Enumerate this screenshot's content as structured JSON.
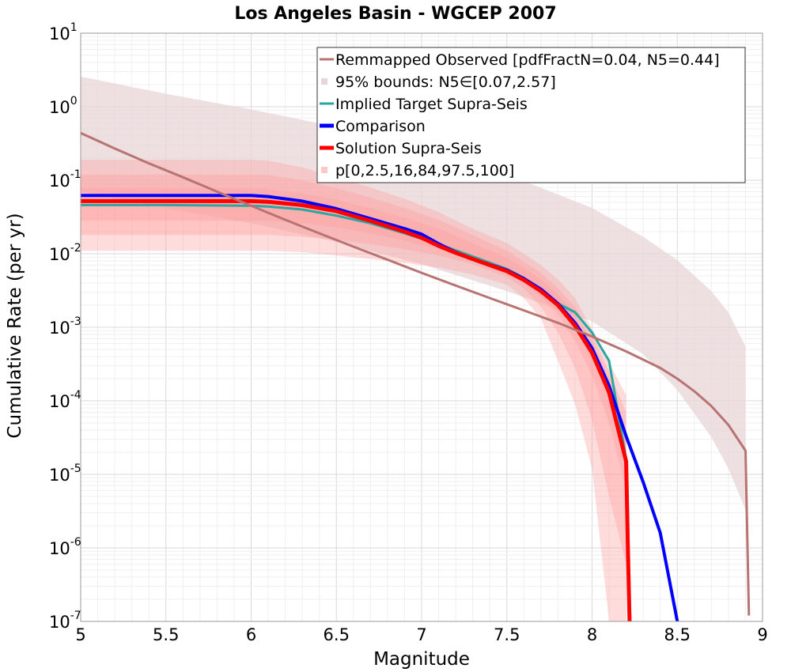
{
  "chart_data": {
    "type": "line",
    "title": "Los Angeles Basin - WGCEP 2007",
    "xlabel": "Magnitude",
    "ylabel": "Cumulative Rate (per yr)",
    "xlim": [
      5,
      9
    ],
    "ylim": [
      1e-07,
      10
    ],
    "yscale": "log",
    "grid": true,
    "legend_position": "top-right",
    "x_ticks": [
      "5",
      "5.5",
      "6",
      "6.5",
      "7",
      "7.5",
      "8",
      "8.5",
      "9"
    ],
    "y_ticks": [
      {
        "base": "10",
        "exp": "-7"
      },
      {
        "base": "10",
        "exp": "-6"
      },
      {
        "base": "10",
        "exp": "-5"
      },
      {
        "base": "10",
        "exp": "-4"
      },
      {
        "base": "10",
        "exp": "-3"
      },
      {
        "base": "10",
        "exp": "-2"
      },
      {
        "base": "10",
        "exp": "-1"
      },
      {
        "base": "10",
        "exp": "0"
      },
      {
        "base": "10",
        "exp": "1"
      }
    ],
    "colors": {
      "observed": "#b87373",
      "observed_band": "#e8d5d7",
      "implied": "#2aa7a0",
      "comparison": "#0000ff",
      "solution": "#ff0000",
      "solution_band": "#ff9a9a"
    },
    "legend": [
      {
        "label": "Remmapped Observed [pdfFractN=0.04, N5=0.44]",
        "kind": "line",
        "color": "#b87373"
      },
      {
        "label": "95% bounds: N5∈[0.07,2.57]",
        "kind": "patch",
        "color": "#e8d5d7"
      },
      {
        "label": "Implied Target Supra-Seis",
        "kind": "line",
        "color": "#2aa7a0"
      },
      {
        "label": "Comparison",
        "kind": "thick",
        "color": "#0000ff"
      },
      {
        "label": "Solution Supra-Seis",
        "kind": "thick",
        "color": "#ff0000"
      },
      {
        "label": "p[0,2.5,16,84,97.5,100]",
        "kind": "patch",
        "color": "#ffc8c8"
      }
    ],
    "series": [
      {
        "name": "Remmapped Observed [pdfFractN=0.04, N5=0.44]",
        "x": [
          5.0,
          5.2,
          5.4,
          5.6,
          5.8,
          6.0,
          6.2,
          6.4,
          6.6,
          6.8,
          7.0,
          7.2,
          7.4,
          7.6,
          7.8,
          8.0,
          8.2,
          8.4,
          8.5,
          8.6,
          8.7,
          8.8,
          8.9,
          8.92
        ],
        "y": [
          0.44,
          0.27,
          0.17,
          0.11,
          0.07,
          0.045,
          0.029,
          0.019,
          0.0125,
          0.0083,
          0.0055,
          0.0037,
          0.0025,
          0.0017,
          0.00115,
          0.00075,
          0.00047,
          0.00028,
          0.0002,
          0.000135,
          8.5e-05,
          4.7e-05,
          2.1e-05,
          1.2e-07
        ]
      },
      {
        "name": "95% bounds: N5∈[0.07,2.57]",
        "band": true,
        "x": [
          5.0,
          5.5,
          6.0,
          6.5,
          7.0,
          7.5,
          8.0,
          8.3,
          8.5,
          8.7,
          8.8,
          8.9
        ],
        "lower": [
          0.07,
          0.042,
          0.026,
          0.0145,
          0.0072,
          0.0031,
          0.0012,
          0.00043,
          0.00014,
          3.2e-05,
          1.2e-05,
          3.3e-06
        ],
        "upper": [
          2.57,
          1.5,
          0.92,
          0.53,
          0.26,
          0.12,
          0.042,
          0.017,
          0.0082,
          0.0031,
          0.0016,
          0.00055
        ]
      },
      {
        "name": "Implied Target Supra-Seis",
        "x": [
          5.0,
          5.5,
          6.0,
          6.1,
          6.3,
          6.5,
          6.7,
          6.9,
          7.1,
          7.3,
          7.5,
          7.6,
          7.7,
          7.8,
          7.9,
          8.0,
          8.1,
          8.2
        ],
        "y": [
          0.046,
          0.046,
          0.045,
          0.044,
          0.04,
          0.033,
          0.026,
          0.019,
          0.0135,
          0.0092,
          0.0062,
          0.0047,
          0.0033,
          0.0021,
          0.0016,
          0.00085,
          0.00035,
          1.6e-05
        ]
      },
      {
        "name": "Comparison",
        "x": [
          5.0,
          5.5,
          6.0,
          6.1,
          6.3,
          6.5,
          6.7,
          6.9,
          7.0,
          7.1,
          7.2,
          7.3,
          7.5,
          7.6,
          7.7,
          7.8,
          7.9,
          8.0,
          8.1,
          8.2,
          8.3,
          8.4,
          8.5
        ],
        "y": [
          0.062,
          0.062,
          0.062,
          0.06,
          0.052,
          0.041,
          0.03,
          0.022,
          0.0185,
          0.0137,
          0.0105,
          0.0085,
          0.006,
          0.0046,
          0.0033,
          0.0021,
          0.00115,
          0.00052,
          0.00016,
          3.3e-05,
          7.8e-06,
          1.6e-06,
          1e-07
        ]
      },
      {
        "name": "Solution Supra-Seis",
        "x": [
          5.0,
          5.5,
          6.0,
          6.1,
          6.3,
          6.5,
          6.7,
          6.9,
          7.0,
          7.1,
          7.2,
          7.3,
          7.5,
          7.6,
          7.7,
          7.8,
          7.9,
          8.0,
          8.1,
          8.2,
          8.21,
          8.22
        ],
        "y": [
          0.052,
          0.052,
          0.052,
          0.051,
          0.046,
          0.038,
          0.028,
          0.02,
          0.0165,
          0.0128,
          0.0103,
          0.0085,
          0.0058,
          0.0044,
          0.0031,
          0.002,
          0.00105,
          0.00045,
          0.00013,
          1.5e-05,
          1e-06,
          1e-07
        ]
      },
      {
        "name": "p[0,2.5,16,84,97.5,100]",
        "band_set": true,
        "x": [
          5.0,
          5.5,
          6.0,
          6.1,
          6.3,
          6.5,
          6.7,
          6.9,
          7.1,
          7.3,
          7.5,
          7.6,
          7.7,
          7.8,
          7.9,
          8.0,
          8.1,
          8.2
        ],
        "bands": [
          {
            "lower": [
              0.011,
              0.011,
              0.011,
              0.011,
              0.0105,
              0.0095,
              0.0085,
              0.0075,
              0.0065,
              0.0052,
              0.0038,
              0.0025,
              0.0013,
              0.00035,
              9e-05,
              1.2e-05,
              1e-07,
              1e-07
            ],
            "upper": [
              0.19,
              0.19,
              0.19,
              0.185,
              0.15,
              0.11,
              0.08,
              0.056,
              0.037,
              0.022,
              0.014,
              0.01,
              0.007,
              0.0045,
              0.0025,
              0.00095,
              0.00033,
              0.00012
            ]
          },
          {
            "lower": [
              0.018,
              0.018,
              0.018,
              0.018,
              0.017,
              0.0155,
              0.0135,
              0.0115,
              0.0095,
              0.0072,
              0.0048,
              0.0034,
              0.0019,
              0.00085,
              0.00028,
              5.5e-05,
              5e-06,
              6e-07
            ],
            "upper": [
              0.12,
              0.12,
              0.12,
              0.118,
              0.1,
              0.078,
              0.058,
              0.042,
              0.029,
              0.018,
              0.011,
              0.0078,
              0.0055,
              0.0034,
              0.0019,
              0.0008,
              0.00025,
              7e-05
            ]
          },
          {
            "lower": [
              0.028,
              0.028,
              0.028,
              0.028,
              0.026,
              0.023,
              0.019,
              0.015,
              0.0115,
              0.0082,
              0.0054,
              0.004,
              0.0026,
              0.0015,
              0.00065,
              0.00022,
              5e-05,
              6e-06
            ],
            "upper": [
              0.078,
              0.078,
              0.078,
              0.076,
              0.067,
              0.054,
              0.042,
              0.031,
              0.022,
              0.014,
              0.0088,
              0.0064,
              0.0045,
              0.0028,
              0.0015,
              0.00065,
              0.0002,
              4e-05
            ]
          }
        ]
      }
    ]
  }
}
